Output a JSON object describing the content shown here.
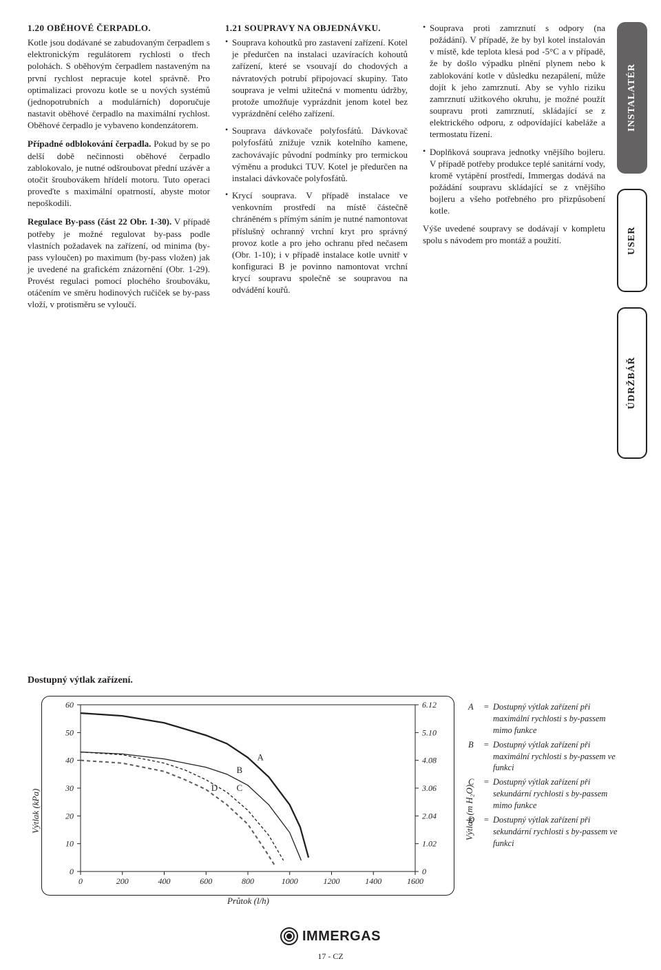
{
  "col1": {
    "heading": "1.20 OBĚHOVÉ ČERPADLO.",
    "p1": "Kotle jsou dodávané se zabudovaným čerpadlem s elektronickým regulátorem rychlosti o třech polohách. S oběhovým čerpadlem nastaveným na první rychlost nepracuje kotel správně. Pro optimalizaci provozu kotle se u nových systémů (jednopotrubních a modulárních) doporučuje nastavit oběhové čerpadlo na maximální rychlost. Oběhové čerpadlo je vybaveno kondenzátorem.",
    "p2_lead": "Případné odblokování čerpadla.",
    "p2_rest": " Pokud by se po delší době nečinnosti oběhové čerpadlo zablokovalo, je nutné odšroubovat přední uzávěr a otočit šroubovákem hřídelí motoru. Tuto operaci proveďte s maximální opatrností, abyste motor nepoškodili.",
    "p3_lead": "Regulace By-pass (část 22 Obr. 1-30).",
    "p3_rest": " V případě potřeby je možné regulovat by-pass podle vlastních požadavek na zařízení, od minima (by-pass vyloučen) po maximum (by-pass vložen) jak je uvedené na grafickém znázornění (Obr. 1-29). Provést regulaci pomocí plochého šroubováku, otáčením ve směru hodinových ručiček se by-pass vloží, v protisměru se vyloučí."
  },
  "col2": {
    "heading": "1.21 SOUPRAVY NA OBJEDNÁVKU.",
    "li1": "Souprava kohoutků pro zastavení zařízení. Kotel je předurčen na instalaci uzavíracích kohoutů zařízení, které se vsouvají do chodových a návratových potrubí připojovací skupiny. Tato souprava je velmi užitečná v momentu údržby, protože umožňuje vyprázdnit jenom kotel bez vyprázdnění celého zařízení.",
    "li2": "Souprava dávkovače polyfosfátů. Dávkovač polyfosfátů znižuje vznik kotelního kamene, zachovávajíc původní podmínky pro termickou výměnu a produkci TUV. Kotel je předurčen na instalaci dávkovače polyfosfátů.",
    "li3": "Krycí souprava. V případě instalace ve venkovním prostředí na místě částečně chráněném s přímým sáním je nutné namontovat příslušný ochranný vrchní kryt pro správný provoz kotle a pro jeho ochranu před nečasem (Obr. 1-10); i v případě instalace kotle uvnitř v konfiguraci B je povinno namontovat vrchní krycí soupravu společně se soupravou na odvádění kouřů."
  },
  "col3": {
    "li1": "Souprava proti zamrznutí s odpory (na požádání). V případě, že by byl kotel instalován v místě, kde teplota klesá pod -5°C a v případě, že by došlo výpadku plnění plynem nebo k zablokování kotle v důsledku nezapálení, může dojít k jeho zamrznutí. Aby se vyhlo riziku zamrznutí užitkového okruhu, je možné použít soupravu proti zamrznutí, skládající se z elektrického odporu, z odpovídající kabeláže a termostatu řízení.",
    "li2": "Doplňková souprava jednotky vnějšího bojleru. V případě potřeby produkce teplé sanitární vody, kromě vytápění prostředí, Immergas dodává na požádání soupravu skládající se z vnějšího bojleru a všeho potřebného pro přizpůsobení kotle.",
    "p_after": "Výše uvedené soupravy se dodávají v kompletu spolu s návodem pro montáž a použití."
  },
  "tabs": {
    "t1": "INSTALATÉR",
    "t2": "USER",
    "t3": "ÚDRŽBÁŘ"
  },
  "chart": {
    "title": "Dostupný výtlak zařízení.",
    "ylabel_left": "Výtlak (kPa)",
    "ylabel_right": "Výtlak (m H₂O)",
    "xlabel": "Průtok (l/h)",
    "xlim": [
      0,
      1600
    ],
    "ylim_left": [
      0,
      60
    ],
    "ylim_right": [
      0,
      6.12
    ],
    "xticks": [
      0,
      200,
      400,
      600,
      800,
      1000,
      1200,
      1400,
      1600
    ],
    "yticks_left": [
      0,
      10,
      20,
      30,
      40,
      50,
      60
    ],
    "yticks_right": [
      "0",
      "1.02",
      "2.04",
      "3.06",
      "4.08",
      "5.10",
      "6.12"
    ],
    "series": {
      "A": {
        "label": "A",
        "dash": "none",
        "width": 2.3,
        "color": "#231f20",
        "pts": [
          [
            0,
            57
          ],
          [
            200,
            56
          ],
          [
            400,
            53.5
          ],
          [
            600,
            49
          ],
          [
            700,
            46
          ],
          [
            800,
            41
          ],
          [
            900,
            34
          ],
          [
            1000,
            24
          ],
          [
            1050,
            16
          ],
          [
            1090,
            5
          ]
        ]
      },
      "B": {
        "label": "B",
        "dash": "none",
        "width": 1.3,
        "color": "#231f20",
        "pts": [
          [
            0,
            43
          ],
          [
            200,
            42.3
          ],
          [
            400,
            40.5
          ],
          [
            600,
            37.5
          ],
          [
            700,
            35
          ],
          [
            800,
            31
          ],
          [
            900,
            24
          ],
          [
            1000,
            14
          ],
          [
            1055,
            4
          ]
        ]
      },
      "C": {
        "label": "C",
        "dash": "4,3",
        "width": 1.3,
        "color": "#231f20",
        "pts": [
          [
            0,
            43
          ],
          [
            200,
            42
          ],
          [
            400,
            39
          ],
          [
            500,
            36.5
          ],
          [
            600,
            33
          ],
          [
            700,
            28.5
          ],
          [
            800,
            22
          ],
          [
            900,
            13
          ],
          [
            970,
            4
          ]
        ]
      },
      "D": {
        "label": "D",
        "dash": "5,4",
        "width": 2.0,
        "color": "#58595b",
        "pts": [
          [
            0,
            40
          ],
          [
            200,
            39
          ],
          [
            400,
            36
          ],
          [
            500,
            33
          ],
          [
            600,
            29.5
          ],
          [
            700,
            24
          ],
          [
            800,
            17
          ],
          [
            880,
            8
          ],
          [
            930,
            2
          ]
        ]
      }
    },
    "curve_label_positions": {
      "A": [
        860,
        40
      ],
      "B": [
        760,
        35.5
      ],
      "C": [
        760,
        29
      ],
      "D": [
        640,
        29
      ]
    },
    "legend": {
      "A": "Dostupný výtlak zařízení při maximální rychlosti s by-passem mimo funkce",
      "B": "Dostupný výtlak zařízení při maximální rychlosti s by-passem ve funkci",
      "C": "Dostupný výtlak zařízení při sekundární rychlosti s by-passem mimo funkce",
      "D": "Dostupný výtlak zařízení při sekundární rychlosti s by-passem ve funkci"
    }
  },
  "logo_text": "IMMERGAS",
  "page_number": "17 - CZ"
}
